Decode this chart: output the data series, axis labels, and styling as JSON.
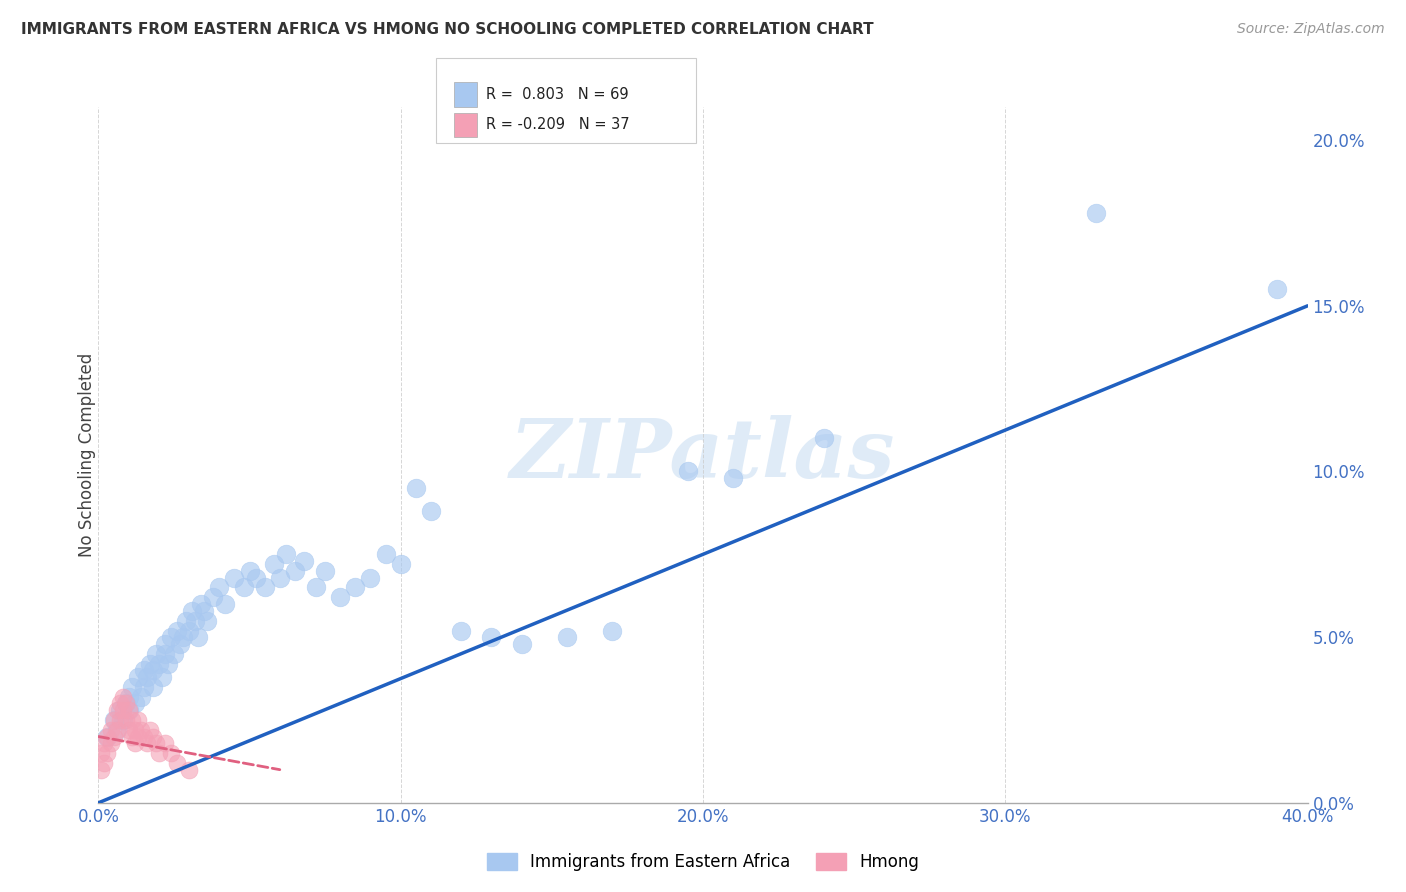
{
  "title": "IMMIGRANTS FROM EASTERN AFRICA VS HMONG NO SCHOOLING COMPLETED CORRELATION CHART",
  "source": "Source: ZipAtlas.com",
  "legend_label1": "Immigrants from Eastern Africa",
  "legend_label2": "Hmong",
  "R1": 0.803,
  "N1": 69,
  "R2": -0.209,
  "N2": 37,
  "xlim": [
    0.0,
    0.4
  ],
  "ylim": [
    0.0,
    0.21
  ],
  "xticks": [
    0.0,
    0.1,
    0.2,
    0.3,
    0.4
  ],
  "xtick_labels": [
    "0.0%",
    "10.0%",
    "20.0%",
    "30.0%",
    "40.0%"
  ],
  "yticks": [
    0.0,
    0.05,
    0.1,
    0.15,
    0.2
  ],
  "ytick_labels": [
    "0.0%",
    "5.0%",
    "10.0%",
    "15.0%",
    "20.0%"
  ],
  "blue_color": "#A8C8F0",
  "pink_color": "#F4A0B5",
  "line_blue": "#2060C0",
  "line_pink": "#E06080",
  "background": "#ffffff",
  "watermark": "ZIPatlas",
  "ylabel_label": "No Schooling Completed",
  "blue_scatter_x": [
    0.003,
    0.005,
    0.006,
    0.007,
    0.008,
    0.009,
    0.01,
    0.01,
    0.011,
    0.012,
    0.013,
    0.014,
    0.015,
    0.015,
    0.016,
    0.017,
    0.018,
    0.018,
    0.019,
    0.02,
    0.021,
    0.022,
    0.022,
    0.023,
    0.024,
    0.025,
    0.026,
    0.027,
    0.028,
    0.029,
    0.03,
    0.031,
    0.032,
    0.033,
    0.034,
    0.035,
    0.036,
    0.038,
    0.04,
    0.042,
    0.045,
    0.048,
    0.05,
    0.052,
    0.055,
    0.058,
    0.06,
    0.062,
    0.065,
    0.068,
    0.072,
    0.075,
    0.08,
    0.085,
    0.09,
    0.095,
    0.1,
    0.105,
    0.11,
    0.12,
    0.13,
    0.14,
    0.155,
    0.17,
    0.195,
    0.21,
    0.24,
    0.33,
    0.39
  ],
  "blue_scatter_y": [
    0.02,
    0.025,
    0.022,
    0.028,
    0.025,
    0.03,
    0.032,
    0.028,
    0.035,
    0.03,
    0.038,
    0.032,
    0.035,
    0.04,
    0.038,
    0.042,
    0.04,
    0.035,
    0.045,
    0.042,
    0.038,
    0.045,
    0.048,
    0.042,
    0.05,
    0.045,
    0.052,
    0.048,
    0.05,
    0.055,
    0.052,
    0.058,
    0.055,
    0.05,
    0.06,
    0.058,
    0.055,
    0.062,
    0.065,
    0.06,
    0.068,
    0.065,
    0.07,
    0.068,
    0.065,
    0.072,
    0.068,
    0.075,
    0.07,
    0.073,
    0.065,
    0.07,
    0.062,
    0.065,
    0.068,
    0.075,
    0.072,
    0.095,
    0.088,
    0.052,
    0.05,
    0.048,
    0.05,
    0.052,
    0.1,
    0.098,
    0.11,
    0.178,
    0.155
  ],
  "pink_scatter_x": [
    0.001,
    0.001,
    0.002,
    0.002,
    0.003,
    0.003,
    0.004,
    0.004,
    0.005,
    0.005,
    0.006,
    0.006,
    0.007,
    0.007,
    0.008,
    0.008,
    0.009,
    0.009,
    0.01,
    0.01,
    0.011,
    0.011,
    0.012,
    0.012,
    0.013,
    0.013,
    0.014,
    0.015,
    0.016,
    0.017,
    0.018,
    0.019,
    0.02,
    0.022,
    0.024,
    0.026,
    0.03
  ],
  "pink_scatter_y": [
    0.01,
    0.015,
    0.012,
    0.018,
    0.015,
    0.02,
    0.018,
    0.022,
    0.02,
    0.025,
    0.022,
    0.028,
    0.025,
    0.03,
    0.028,
    0.032,
    0.025,
    0.03,
    0.028,
    0.022,
    0.025,
    0.02,
    0.022,
    0.018,
    0.02,
    0.025,
    0.022,
    0.02,
    0.018,
    0.022,
    0.02,
    0.018,
    0.015,
    0.018,
    0.015,
    0.012,
    0.01
  ],
  "blue_trendline_x": [
    0.0,
    0.4
  ],
  "blue_trendline_y": [
    0.0,
    0.15
  ],
  "pink_trendline_x": [
    0.0,
    0.06
  ],
  "pink_trendline_y": [
    0.02,
    0.01
  ]
}
